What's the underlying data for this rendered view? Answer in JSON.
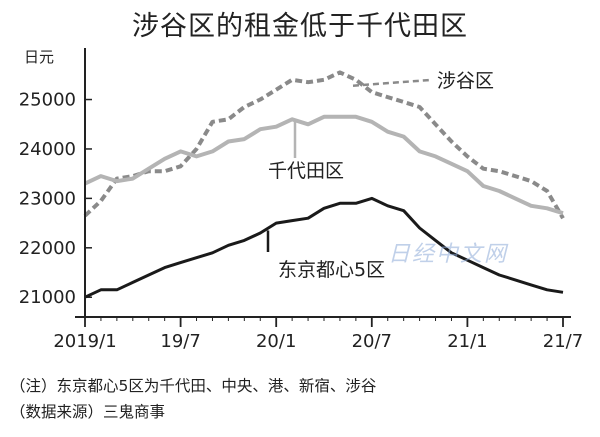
{
  "header": {
    "title": "涉谷区的租金低于千代田区"
  },
  "watermark": "日经中文网",
  "notes": {
    "line1": "（注）东京都心5区为千代田、中央、港、新宿、涉谷",
    "line2": "（数据来源）三鬼商事"
  },
  "colors": {
    "axis": "#222222",
    "shibuya": "#8a8a8a",
    "chiyoda": "#b4b4b4",
    "tokyo5": "#1a1a1a"
  },
  "chart_data": {
    "type": "line",
    "title": "涉谷区的租金低于千代田区",
    "ylabel": "日元",
    "xlabel": "",
    "ylim": [
      20600,
      25800
    ],
    "yticks": [
      21000,
      22000,
      23000,
      24000,
      25000
    ],
    "xtick_labels": [
      "2019/1",
      "19/7",
      "20/1",
      "20/7",
      "21/1",
      "21/7"
    ],
    "x": [
      "2019/1",
      "2019/2",
      "2019/3",
      "2019/4",
      "2019/5",
      "2019/6",
      "2019/7",
      "2019/8",
      "2019/9",
      "2019/10",
      "2019/11",
      "2019/12",
      "2020/1",
      "2020/2",
      "2020/3",
      "2020/4",
      "2020/5",
      "2020/6",
      "2020/7",
      "2020/8",
      "2020/9",
      "2020/10",
      "2020/11",
      "2020/12",
      "2021/1",
      "2021/2",
      "2021/3",
      "2021/4",
      "2021/5",
      "2021/6",
      "2021/7"
    ],
    "series": [
      {
        "name": "涉谷区",
        "style": "dashed",
        "values": [
          22650,
          22950,
          23400,
          23450,
          23550,
          23550,
          23650,
          24000,
          24550,
          24600,
          24850,
          25000,
          25200,
          25400,
          25350,
          25400,
          25550,
          25400,
          25150,
          25050,
          24950,
          24850,
          24500,
          24150,
          23850,
          23600,
          23550,
          23450,
          23350,
          23150,
          22600
        ]
      },
      {
        "name": "千代田区",
        "style": "solid",
        "values": [
          23300,
          23450,
          23350,
          23400,
          23600,
          23800,
          23950,
          23850,
          23950,
          24150,
          24200,
          24400,
          24450,
          24600,
          24500,
          24650,
          24650,
          24650,
          24550,
          24350,
          24250,
          23950,
          23850,
          23700,
          23550,
          23250,
          23150,
          23000,
          22850,
          22800,
          22700
        ]
      },
      {
        "name": "东京都心5区",
        "style": "solid",
        "values": [
          21000,
          21150,
          21150,
          21300,
          21450,
          21600,
          21700,
          21800,
          21900,
          22050,
          22150,
          22300,
          22500,
          22550,
          22600,
          22800,
          22900,
          22900,
          23000,
          22850,
          22750,
          22400,
          22150,
          21900,
          21750,
          21600,
          21450,
          21350,
          21250,
          21150,
          21100
        ]
      }
    ]
  }
}
